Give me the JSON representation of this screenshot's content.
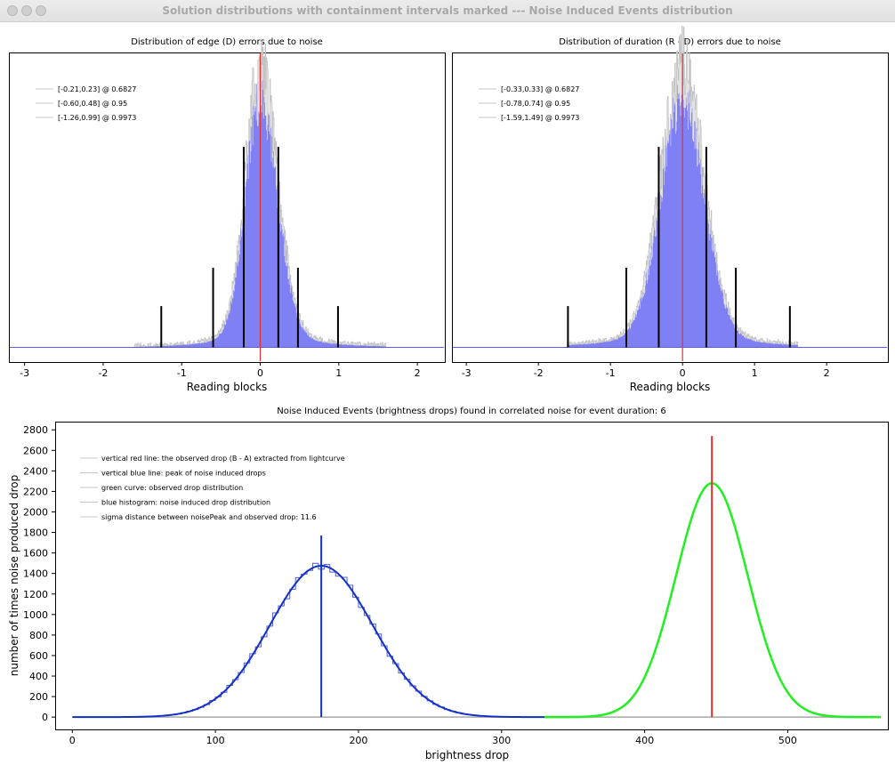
{
  "window": {
    "title": "Solution distributions with containment intervals marked --- Noise Induced Events distribution"
  },
  "colors": {
    "hist_fill": "#7a7af5",
    "hist_outline": "#c4c4c4",
    "red_line": "#e03030",
    "blue_curve": "#1530c8",
    "green_curve": "#22ee22",
    "grey_base": "#a8a8a8"
  },
  "chart_data": [
    {
      "type": "bar",
      "title": "Distribution of edge (D) errors due to noise",
      "xlabel": "Reading blocks",
      "xlim": [
        -3.2,
        2.35
      ],
      "xticks": [
        -3,
        -2,
        -1,
        0,
        1,
        2
      ],
      "center_red_line": 0,
      "hist_sigma_left": 0.19,
      "hist_sigma_right": 0.22,
      "intervals": [
        {
          "label": "[-0.21,0.23] @ 0.6827",
          "lo": -0.21,
          "hi": 0.23,
          "height": 0.68
        },
        {
          "label": "[-0.60,0.48] @ 0.95",
          "lo": -0.6,
          "hi": 0.48,
          "height": 0.27
        },
        {
          "label": "[-1.26,0.99] @ 0.9973",
          "lo": -1.26,
          "hi": 0.99,
          "height": 0.14
        }
      ]
    },
    {
      "type": "bar",
      "title": "Distribution of duration (R - D) errors due to noise",
      "xlabel": "Reading blocks",
      "xlim": [
        -3.2,
        2.85
      ],
      "xticks": [
        -3,
        -2,
        -1,
        0,
        1,
        2
      ],
      "center_red_line": 0,
      "hist_sigma_left": 0.3,
      "hist_sigma_right": 0.3,
      "intervals": [
        {
          "label": "[-0.33,0.33] @ 0.6827",
          "lo": -0.33,
          "hi": 0.33,
          "height": 0.68
        },
        {
          "label": "[-0.78,0.74] @ 0.95",
          "lo": -0.78,
          "hi": 0.74,
          "height": 0.27
        },
        {
          "label": "[-1.59,1.49] @ 0.9973",
          "lo": -1.59,
          "hi": 1.49,
          "height": 0.14
        }
      ]
    },
    {
      "type": "line",
      "title": "Noise Induced Events (brightness drops) found in correlated noise for event duration: 6",
      "xlabel": "brightness drop",
      "ylabel": "number of times noise produced drop",
      "xlim": [
        -12,
        570
      ],
      "ylim": [
        -120,
        2880
      ],
      "xticks": [
        0,
        100,
        200,
        300,
        400,
        500
      ],
      "yticks": [
        0,
        200,
        400,
        600,
        800,
        1000,
        1200,
        1400,
        1600,
        1800,
        2000,
        2200,
        2400,
        2600,
        2800
      ],
      "legend": [
        "vertical red line: the observed drop (B - A) extracted from lightcurve",
        "vertical blue line: peak of noise induced drops",
        "green curve: observed drop distribution",
        "blue histogram: noise induced drop distribution",
        "sigma distance between noisePeak and observed drop: 11.6"
      ],
      "series": [
        {
          "name": "noise induced drop distribution",
          "color": "#1530c8",
          "peak_x": 174,
          "peak_y": 1475,
          "sigma": 36
        },
        {
          "name": "observed drop distribution",
          "color": "#22ee22",
          "peak_x": 447,
          "peak_y": 2280,
          "sigma": 25
        }
      ],
      "vlines": [
        {
          "x": 174,
          "top": 1770,
          "color": "#1530c8"
        },
        {
          "x": 447,
          "top": 2740,
          "color": "#e03030"
        }
      ],
      "baseline_x": [
        0,
        565
      ]
    }
  ]
}
